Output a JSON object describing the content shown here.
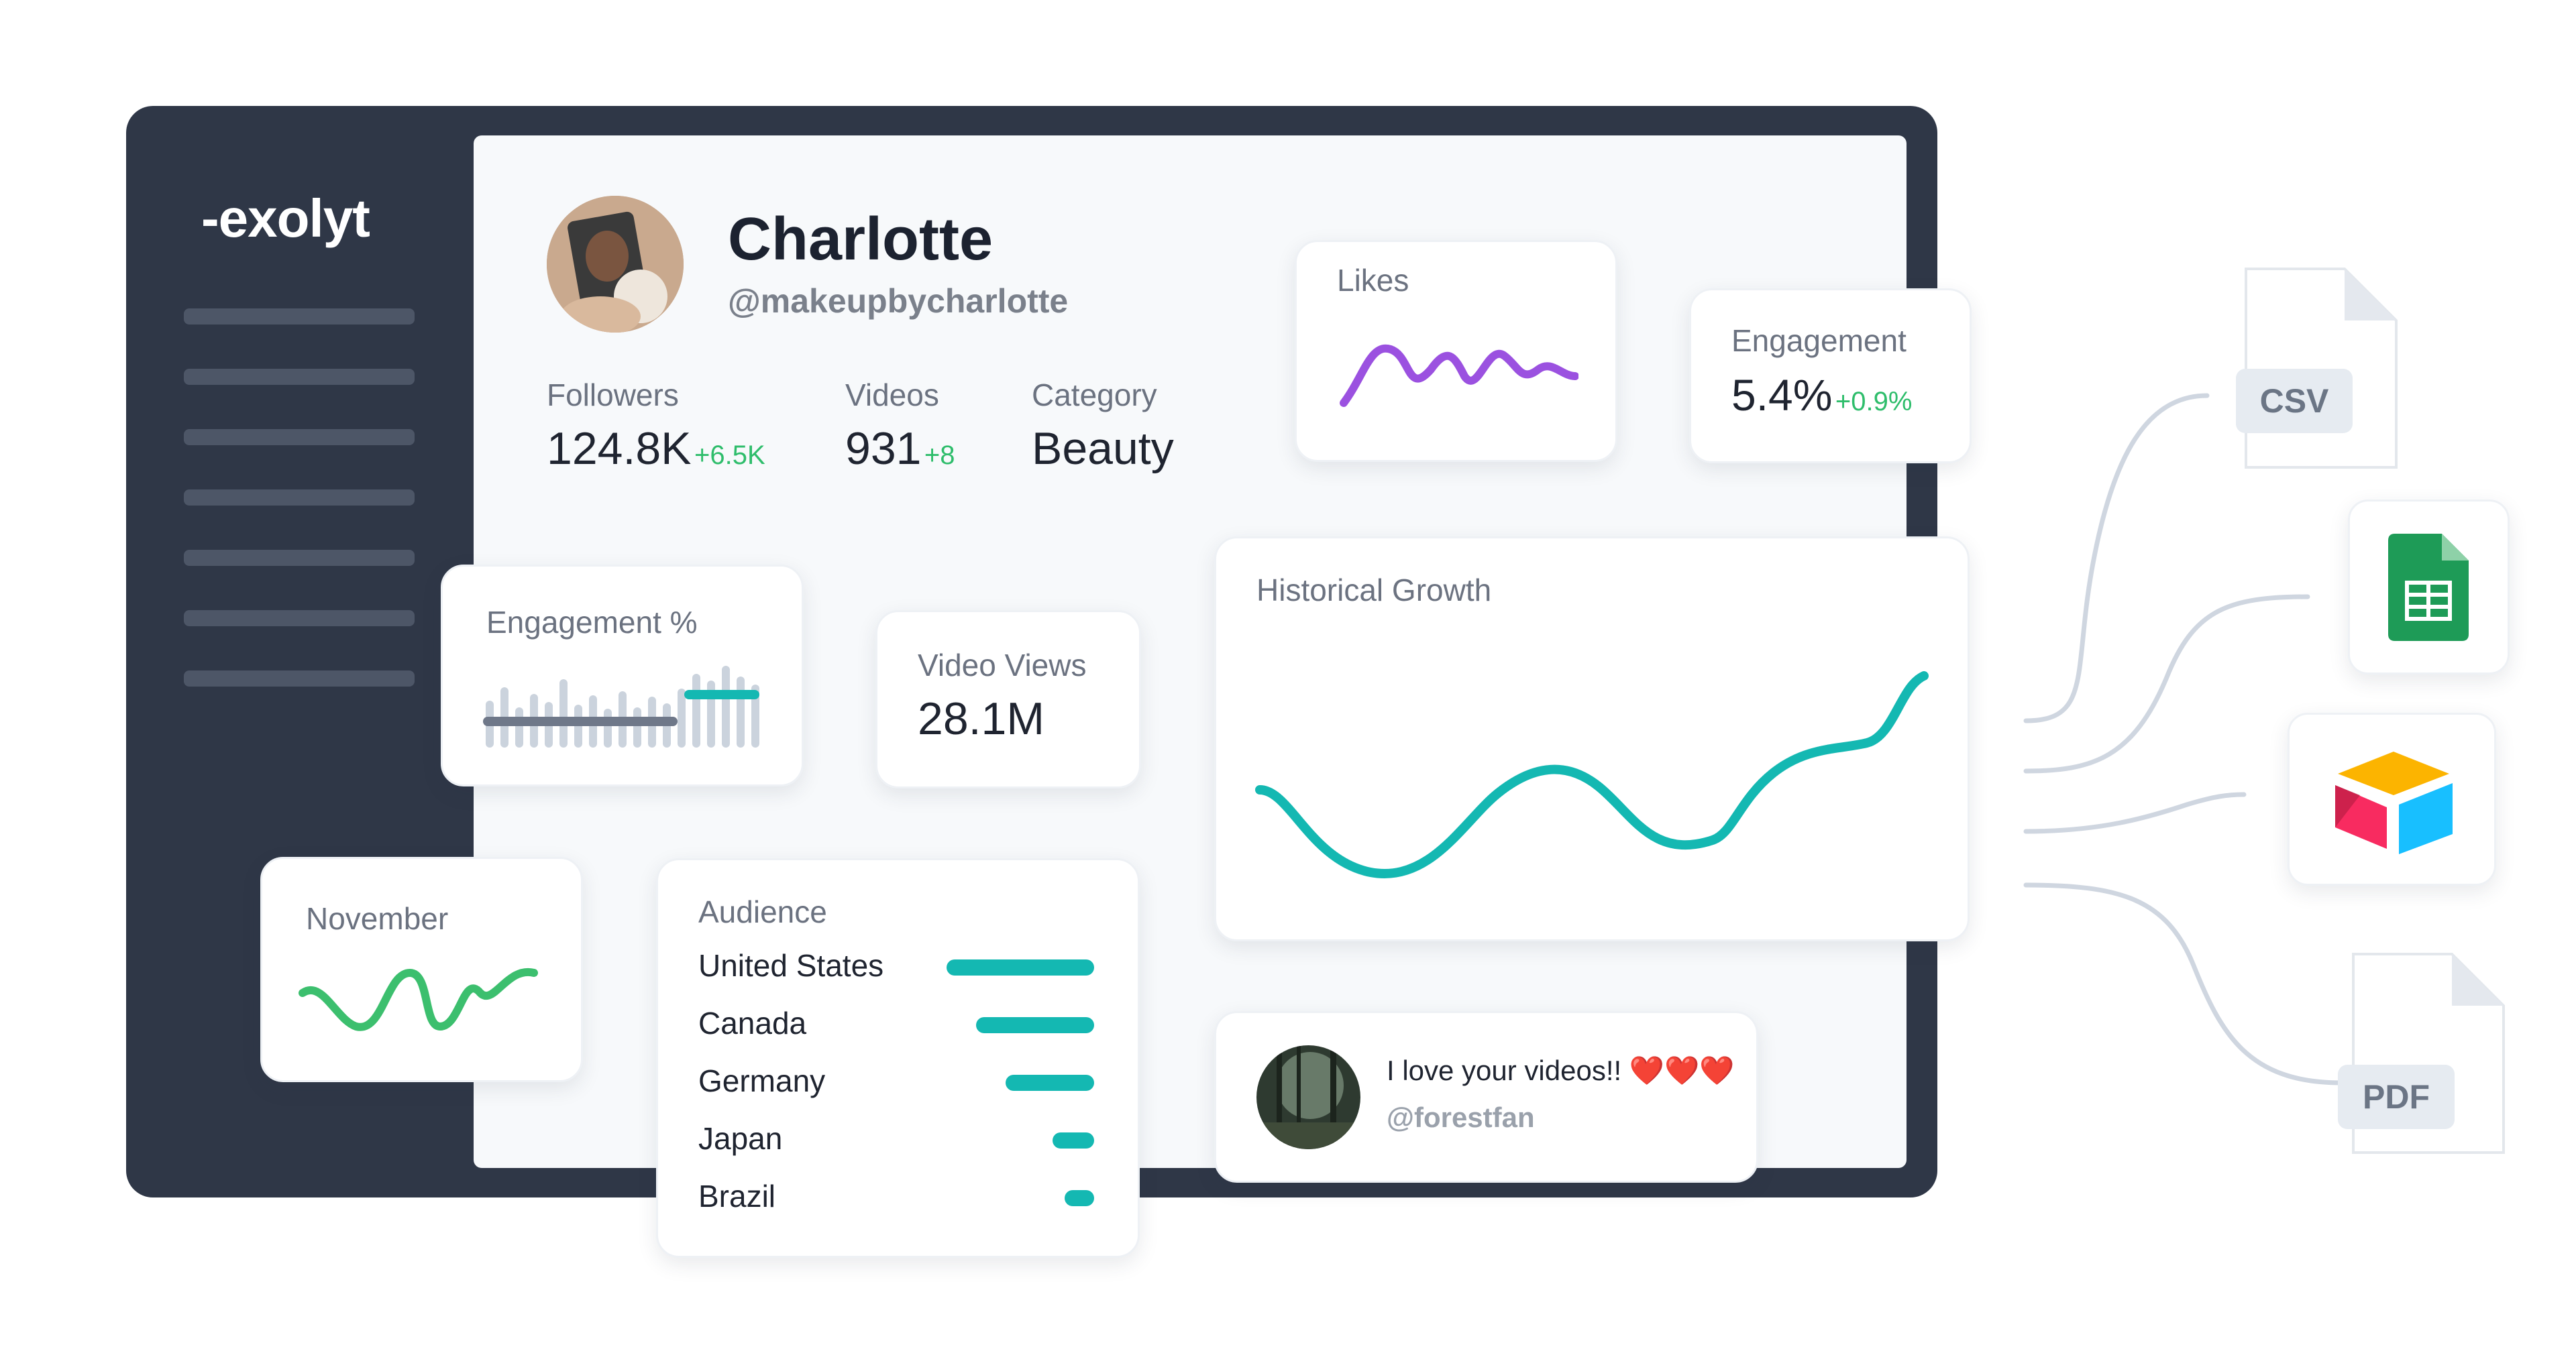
{
  "brand": {
    "logo_text": "-exolyt"
  },
  "profile": {
    "name": "Charlotte",
    "handle": "@makeupbycharlotte",
    "stats": [
      {
        "label": "Followers",
        "value": "124.8K",
        "delta": "+6.5K"
      },
      {
        "label": "Videos",
        "value": "931",
        "delta": "+8"
      },
      {
        "label": "Category",
        "value": "Beauty",
        "delta": ""
      }
    ]
  },
  "cards": {
    "likes": {
      "title": "Likes"
    },
    "engagement": {
      "title": "Engagement",
      "value": "5.4%",
      "delta": "+0.9%"
    },
    "engagement_pct": {
      "title": "Engagement %",
      "progress": 0.72
    },
    "video_views": {
      "title": "Video Views",
      "value": "28.1M"
    },
    "historical_growth": {
      "title": "Historical Growth"
    },
    "november": {
      "title": "November"
    },
    "audience": {
      "title": "Audience",
      "items": [
        {
          "country": "United States",
          "share": 1.0
        },
        {
          "country": "Canada",
          "share": 0.8
        },
        {
          "country": "Germany",
          "share": 0.6
        },
        {
          "country": "Japan",
          "share": 0.28
        },
        {
          "country": "Brazil",
          "share": 0.2
        }
      ]
    },
    "comment": {
      "text": "I love your videos!! ❤️❤️❤️",
      "author": "@forestfan"
    }
  },
  "exports": {
    "csv_label": "CSV",
    "pdf_label": "PDF"
  },
  "colors": {
    "frame": "#2f3747",
    "accent_teal": "#14b8b2",
    "likes_purple": "#9b51e0",
    "positive_green": "#2ebd6b",
    "sheets_green": "#1e9b57"
  }
}
